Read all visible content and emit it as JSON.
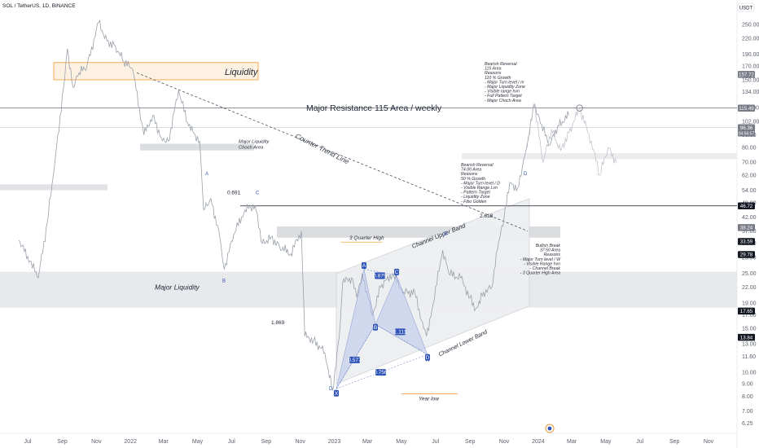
{
  "header": {
    "symbol_line": "SOL / TetherUS, 1D, BINANCE",
    "currency": "USDT"
  },
  "chart_data": {
    "type": "line",
    "title": "SOL / TetherUS, 1D, BINANCE",
    "xlabel": "",
    "ylabel": "",
    "yscale": "log",
    "ylim": [
      5.9,
      300
    ],
    "x_ticks": [
      "Jul",
      "Sep",
      "Nov",
      "2022",
      "Mar",
      "May",
      "Jul",
      "Sep",
      "Nov",
      "2023",
      "Mar",
      "May",
      "Jul",
      "Sep",
      "Nov",
      "2024",
      "Mar",
      "May",
      "Jul",
      "Sep",
      "Nov"
    ],
    "y_ticks": [
      6.25,
      7.0,
      8.0,
      9.0,
      10.0,
      11.6,
      13.0,
      15.0,
      17.0,
      19.0,
      22.0,
      25.0,
      29.0,
      33.0,
      37.0,
      42.0,
      48.0,
      54.0,
      62.0,
      70.0,
      80.0,
      90.0,
      102.0,
      116.0,
      134.0,
      150.0,
      170.0,
      190.0,
      220.0,
      250.0
    ],
    "price_path": [
      [
        "2021-06-15",
        34
      ],
      [
        "2021-07-05",
        28
      ],
      [
        "2021-07-20",
        24
      ],
      [
        "2021-08-05",
        40
      ],
      [
        "2021-08-20",
        75
      ],
      [
        "2021-09-05",
        150
      ],
      [
        "2021-09-10",
        200
      ],
      [
        "2021-09-20",
        140
      ],
      [
        "2021-10-01",
        160
      ],
      [
        "2021-10-15",
        170
      ],
      [
        "2021-11-05",
        255
      ],
      [
        "2021-11-20",
        215
      ],
      [
        "2021-12-05",
        205
      ],
      [
        "2021-12-20",
        178
      ],
      [
        "2022-01-05",
        165
      ],
      [
        "2022-01-25",
        90
      ],
      [
        "2022-02-10",
        108
      ],
      [
        "2022-02-25",
        88
      ],
      [
        "2022-03-10",
        85
      ],
      [
        "2022-03-28",
        136
      ],
      [
        "2022-04-15",
        98
      ],
      [
        "2022-05-05",
        85
      ],
      [
        "2022-05-12",
        45
      ],
      [
        "2022-05-25",
        50
      ],
      [
        "2022-06-10",
        35
      ],
      [
        "2022-06-18",
        26
      ],
      [
        "2022-07-05",
        36
      ],
      [
        "2022-07-25",
        45
      ],
      [
        "2022-08-12",
        47
      ],
      [
        "2022-08-25",
        33
      ],
      [
        "2022-09-10",
        35
      ],
      [
        "2022-09-25",
        32
      ],
      [
        "2022-10-15",
        30
      ],
      [
        "2022-11-03",
        37
      ],
      [
        "2022-11-09",
        14
      ],
      [
        "2022-11-25",
        13.5
      ],
      [
        "2022-12-15",
        12
      ],
      [
        "2022-12-29",
        8.5
      ],
      [
        "2023-01-10",
        14
      ],
      [
        "2023-01-16",
        23
      ],
      [
        "2023-02-01",
        24
      ],
      [
        "2023-02-10",
        20
      ],
      [
        "2023-02-20",
        25
      ],
      [
        "2023-03-10",
        17
      ],
      [
        "2023-03-25",
        22
      ],
      [
        "2023-04-15",
        25
      ],
      [
        "2023-05-05",
        21
      ],
      [
        "2023-05-25",
        21
      ],
      [
        "2023-06-10",
        15
      ],
      [
        "2023-06-15",
        14
      ],
      [
        "2023-06-25",
        18
      ],
      [
        "2023-07-14",
        31
      ],
      [
        "2023-07-25",
        25
      ],
      [
        "2023-08-15",
        24
      ],
      [
        "2023-09-01",
        20
      ],
      [
        "2023-09-11",
        18
      ],
      [
        "2023-09-25",
        21
      ],
      [
        "2023-10-10",
        22
      ],
      [
        "2023-10-20",
        31
      ],
      [
        "2023-11-01",
        42
      ],
      [
        "2023-11-11",
        58
      ],
      [
        "2023-11-25",
        55
      ],
      [
        "2023-12-10",
        78
      ],
      [
        "2023-12-25",
        120
      ],
      [
        "2024-01-05",
        100
      ],
      [
        "2024-01-22",
        82
      ],
      [
        "2024-02-05",
        98
      ],
      [
        "2024-02-25",
        108
      ]
    ],
    "projection_path": [
      [
        "2023-12-10",
        78
      ],
      [
        "2023-12-25",
        118
      ],
      [
        "2024-01-10",
        70
      ],
      [
        "2024-01-25",
        95
      ],
      [
        "2024-02-10",
        78
      ],
      [
        "2024-02-25",
        92
      ],
      [
        "2024-03-15",
        115
      ],
      [
        "2024-04-05",
        85
      ],
      [
        "2024-04-20",
        62
      ],
      [
        "2024-05-05",
        80
      ],
      [
        "2024-05-20",
        70
      ]
    ],
    "price_labels": [
      {
        "value": 157.72,
        "color": "#787b86"
      },
      {
        "value": 115.49,
        "color": "#787b86"
      },
      {
        "value": 96.36,
        "color": "#787b86",
        "sub": "04:56:57"
      },
      {
        "value": 46.72,
        "color": "#131722"
      },
      {
        "value": 38.24,
        "color": "#787b86"
      },
      {
        "value": 33.59,
        "color": "#131722"
      },
      {
        "value": 29.78,
        "color": "#131722"
      },
      {
        "value": 17.65,
        "color": "#131722"
      },
      {
        "value": 13.84,
        "color": "#131722"
      }
    ]
  },
  "annotations": {
    "liquidity_label": "Liquidity",
    "major_resistance": "Major Resistance  115 Area / weekly",
    "counter_trend": "Counter Trend Line",
    "major_liquidity_choch": "Major Liquidity",
    "choch_area": "Choch Area",
    "major_liquidity": "Major Liquidity",
    "three_quarter_high": "3 Quarter High",
    "channel_upper": "Channel Upper Band",
    "channel_lower": "Channel Lower Band",
    "year_low": "Year low",
    "fib_0691": "0.691",
    "fib_1869": "1.869",
    "fib_2618": "2.618",
    "pt_A1": "A",
    "pt_B1": "B",
    "pt_C1": "C",
    "pt_D1": "D",
    "pt_X": "X",
    "pt_A2": "A",
    "pt_B2": "B",
    "pt_C2": "C",
    "pt_D2": "D",
    "pt_A3": "A",
    "pt_D3": "D",
    "pt_B3": "B",
    "ratio_0879": "0.879",
    "ratio_0577": "0.577",
    "ratio_1111": "1.111",
    "ratio_0756": "0.756",
    "bearish_top": {
      "title": "Bearish Reversal",
      "lines": [
        "115 Area",
        "Reasons",
        "110 % Growth",
        "",
        "- Major Turn level  / m",
        "- Major Liquidity Zone",
        "- Visible range hvn",
        "- Full Pattern Target",
        "- Major Choch Area"
      ]
    },
    "bearish_mid": {
      "title": "Bearish Reversal",
      "lines": [
        "74.00 Area",
        "Reasons",
        "50 % Growth",
        "",
        "- Major Turn level / D",
        "- Visible Range Lvn",
        "- Pattern Target",
        "- Liquidity Zone",
        "- Fibo Golden"
      ]
    },
    "bullish_break": {
      "title": "Bullish Break",
      "lines": [
        "37.50 Area",
        "Reasons",
        "",
        "- Major Turn level / W",
        "- Visible Range hvn",
        "- Channel Break",
        "- 3 Quarter High Area"
      ]
    }
  },
  "colors": {
    "price": "#9aa0aa",
    "liquidity_box": "#f7a345",
    "channel": "#c9cdd4",
    "pattern_fill": "#b8c7ec",
    "pattern_line": "#2f53b6",
    "label_dark": "#131722",
    "label_grey": "#787b86"
  }
}
